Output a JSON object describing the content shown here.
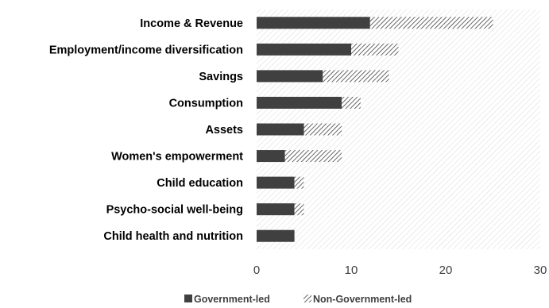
{
  "chart_data": {
    "type": "bar",
    "orientation": "horizontal",
    "stacked": true,
    "categories": [
      "Income & Revenue",
      "Employment/income diversification",
      "Savings",
      "Consumption",
      "Assets",
      "Women's empowerment",
      "Child education",
      "Psycho-social well-being",
      "Child health and nutrition"
    ],
    "series": [
      {
        "name": "Government-led",
        "values": [
          12,
          10,
          7,
          9,
          5,
          3,
          4,
          4,
          4
        ],
        "color": "#404040",
        "pattern": "solid"
      },
      {
        "name": "Non-Government-led",
        "values": [
          13,
          5,
          7,
          2,
          4,
          6,
          1,
          1,
          0
        ],
        "color": "#404040",
        "pattern": "diagonal-hatch"
      }
    ],
    "x_ticks": [
      "0",
      "10",
      "20",
      "30"
    ],
    "xlim": [
      0,
      30
    ],
    "grid": false,
    "legend_position": "bottom-center",
    "plot_background": "light diagonal hatch"
  }
}
